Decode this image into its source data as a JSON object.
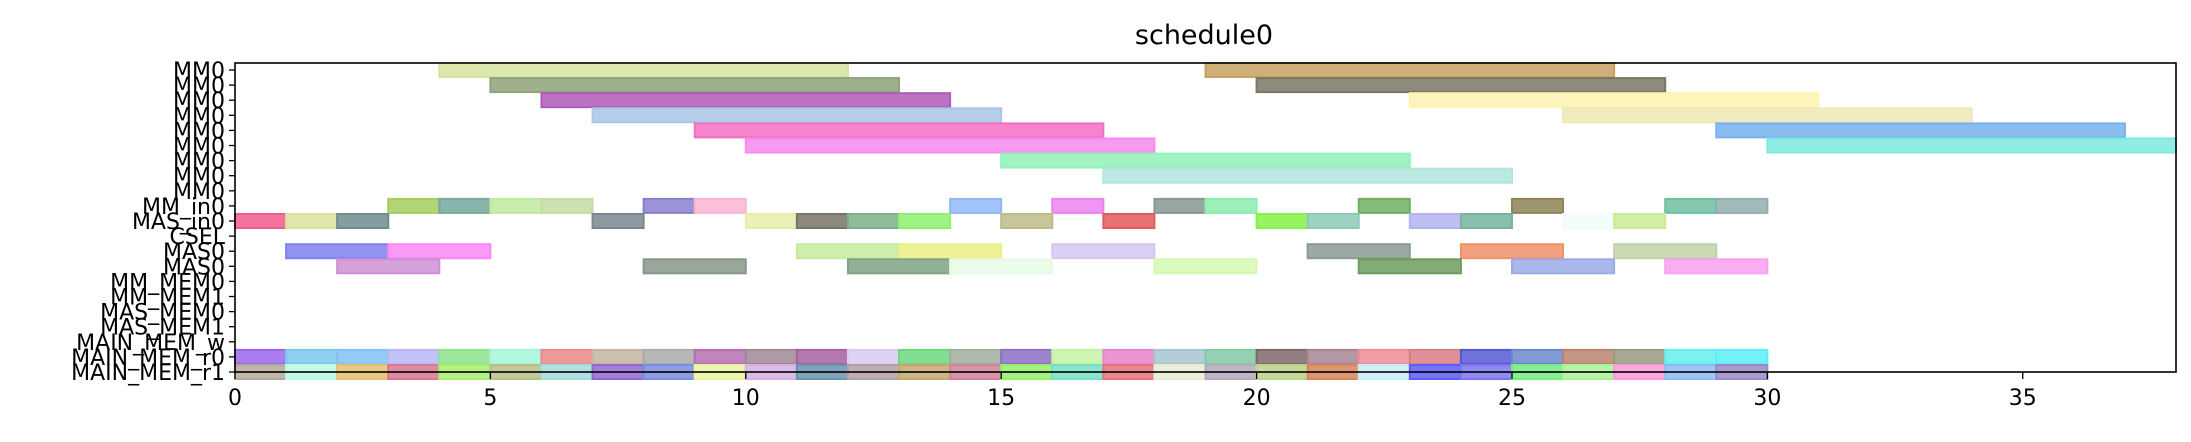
{
  "chart_data": {
    "type": "gantt",
    "title": "schedule0",
    "xlabel": "",
    "ylabel": "",
    "xlim": [
      0,
      38
    ],
    "x_ticks": [
      0,
      5,
      10,
      15,
      20,
      25,
      30,
      35
    ],
    "grid": false,
    "legend": "none",
    "rows": [
      "MM0",
      "MM0",
      "MM0",
      "MM0",
      "MM0",
      "MM0",
      "MM0",
      "MM0",
      "MM0",
      "MM_in0",
      "MAS_in0",
      "CSEL",
      "MAS0",
      "MAS0",
      "MM_MEM0",
      "MM_MEM1",
      "MAS_MEM0",
      "MAS_MEM1",
      "MAIN_MEM_w",
      "MAIN_MEM_r0",
      "MAIN_MEM_r1"
    ],
    "tasks": [
      {
        "row": 0,
        "start": 4,
        "end": 12,
        "color": "#d6e3a0"
      },
      {
        "row": 0,
        "start": 19,
        "end": 27,
        "color": "#c8a060"
      },
      {
        "row": 1,
        "start": 5,
        "end": 13,
        "color": "#8ea378"
      },
      {
        "row": 1,
        "start": 20,
        "end": 28,
        "color": "#7a7766"
      },
      {
        "row": 2,
        "start": 6,
        "end": 14,
        "color": "#b05ab8"
      },
      {
        "row": 2,
        "start": 23,
        "end": 31,
        "color": "#fcf4b0"
      },
      {
        "row": 3,
        "start": 7,
        "end": 15,
        "color": "#aac6e6"
      },
      {
        "row": 3,
        "start": 26,
        "end": 34,
        "color": "#f1e8b5"
      },
      {
        "row": 4,
        "start": 9,
        "end": 17,
        "color": "#f46ec2"
      },
      {
        "row": 4,
        "start": 29,
        "end": 37,
        "color": "#78b2ee"
      },
      {
        "row": 5,
        "start": 10,
        "end": 18,
        "color": "#f68af0"
      },
      {
        "row": 5,
        "start": 30,
        "end": 38,
        "color": "#7ce9e0"
      },
      {
        "row": 6,
        "start": 15,
        "end": 23,
        "color": "#90f2b6"
      },
      {
        "row": 7,
        "start": 17,
        "end": 25,
        "color": "#b0e6dc"
      },
      {
        "row": 9,
        "start": 3,
        "end": 4,
        "color": "#a6cd5c"
      },
      {
        "row": 9,
        "start": 4,
        "end": 5,
        "color": "#76a89e"
      },
      {
        "row": 9,
        "start": 5,
        "end": 6,
        "color": "#c0ea9e"
      },
      {
        "row": 9,
        "start": 6,
        "end": 7,
        "color": "#c6dca4"
      },
      {
        "row": 9,
        "start": 8,
        "end": 9,
        "color": "#8880cc"
      },
      {
        "row": 9,
        "start": 9,
        "end": 10,
        "color": "#fab4d4"
      },
      {
        "row": 9,
        "start": 14,
        "end": 15,
        "color": "#90b8f4"
      },
      {
        "row": 9,
        "start": 16,
        "end": 17,
        "color": "#ec82f0"
      },
      {
        "row": 9,
        "start": 18,
        "end": 19,
        "color": "#869892"
      },
      {
        "row": 9,
        "start": 19,
        "end": 20,
        "color": "#8cecae"
      },
      {
        "row": 9,
        "start": 22,
        "end": 23,
        "color": "#6eb060"
      },
      {
        "row": 9,
        "start": 25,
        "end": 26,
        "color": "#8e8458"
      },
      {
        "row": 9,
        "start": 28,
        "end": 29,
        "color": "#6ec0a0"
      },
      {
        "row": 9,
        "start": 29,
        "end": 30,
        "color": "#92aeae"
      },
      {
        "row": 10,
        "start": 0,
        "end": 1,
        "color": "#f05c8c"
      },
      {
        "row": 10,
        "start": 1,
        "end": 2,
        "color": "#dce2a0"
      },
      {
        "row": 10,
        "start": 2,
        "end": 3,
        "color": "#6e8c8e"
      },
      {
        "row": 10,
        "start": 7,
        "end": 8,
        "color": "#7a8890"
      },
      {
        "row": 10,
        "start": 10,
        "end": 11,
        "color": "#e8eeaa"
      },
      {
        "row": 10,
        "start": 11,
        "end": 12,
        "color": "#7a7466"
      },
      {
        "row": 10,
        "start": 12,
        "end": 13,
        "color": "#7cb088"
      },
      {
        "row": 10,
        "start": 13,
        "end": 14,
        "color": "#8ef070"
      },
      {
        "row": 10,
        "start": 15,
        "end": 16,
        "color": "#bcbc88"
      },
      {
        "row": 10,
        "start": 17,
        "end": 18,
        "color": "#e05a5e"
      },
      {
        "row": 10,
        "start": 20,
        "end": 21,
        "color": "#84f246"
      },
      {
        "row": 10,
        "start": 21,
        "end": 22,
        "color": "#8ccab8"
      },
      {
        "row": 10,
        "start": 23,
        "end": 24,
        "color": "#b4b4f0"
      },
      {
        "row": 10,
        "start": 24,
        "end": 25,
        "color": "#76b4a0"
      },
      {
        "row": 10,
        "start": 26,
        "end": 27,
        "color": "#f2fcfc"
      },
      {
        "row": 10,
        "start": 27,
        "end": 28,
        "color": "#c8ec94"
      },
      {
        "row": 12,
        "start": 1,
        "end": 3,
        "color": "#8080f0"
      },
      {
        "row": 12,
        "start": 3,
        "end": 5,
        "color": "#fa88f4"
      },
      {
        "row": 12,
        "start": 11,
        "end": 13,
        "color": "#c4ec9c"
      },
      {
        "row": 12,
        "start": 13,
        "end": 15,
        "color": "#ecf084"
      },
      {
        "row": 12,
        "start": 16,
        "end": 18,
        "color": "#d6c6f2"
      },
      {
        "row": 12,
        "start": 21,
        "end": 23,
        "color": "#8c9a96"
      },
      {
        "row": 12,
        "start": 24,
        "end": 26,
        "color": "#f2906c"
      },
      {
        "row": 12,
        "start": 27,
        "end": 29,
        "color": "#c2d2a8"
      },
      {
        "row": 13,
        "start": 2,
        "end": 4,
        "color": "#cc90d4"
      },
      {
        "row": 13,
        "start": 8,
        "end": 10,
        "color": "#869888"
      },
      {
        "row": 13,
        "start": 12,
        "end": 14,
        "color": "#7ea484"
      },
      {
        "row": 13,
        "start": 14,
        "end": 16,
        "color": "#e6fae6"
      },
      {
        "row": 13,
        "start": 18,
        "end": 20,
        "color": "#d6f8b4"
      },
      {
        "row": 13,
        "start": 22,
        "end": 24,
        "color": "#6c9c5e"
      },
      {
        "row": 13,
        "start": 25,
        "end": 27,
        "color": "#9eaae6"
      },
      {
        "row": 13,
        "start": 28,
        "end": 30,
        "color": "#f8a0f0"
      },
      {
        "row": 19,
        "start": 0,
        "end": 1,
        "color": "#9c66ec"
      },
      {
        "row": 19,
        "start": 1,
        "end": 2,
        "color": "#7ac8ec"
      },
      {
        "row": 19,
        "start": 2,
        "end": 3,
        "color": "#80c2f4"
      },
      {
        "row": 19,
        "start": 3,
        "end": 4,
        "color": "#b8b8f8"
      },
      {
        "row": 19,
        "start": 4,
        "end": 5,
        "color": "#8ee28e"
      },
      {
        "row": 19,
        "start": 5,
        "end": 6,
        "color": "#a4f6da"
      },
      {
        "row": 19,
        "start": 6,
        "end": 7,
        "color": "#ea8888"
      },
      {
        "row": 19,
        "start": 7,
        "end": 8,
        "color": "#c4b4a0"
      },
      {
        "row": 19,
        "start": 8,
        "end": 9,
        "color": "#aaaaaa"
      },
      {
        "row": 19,
        "start": 9,
        "end": 10,
        "color": "#b470b0"
      },
      {
        "row": 19,
        "start": 10,
        "end": 11,
        "color": "#a08898"
      },
      {
        "row": 19,
        "start": 11,
        "end": 12,
        "color": "#a662a0"
      },
      {
        "row": 19,
        "start": 12,
        "end": 13,
        "color": "#dacaf2"
      },
      {
        "row": 19,
        "start": 13,
        "end": 14,
        "color": "#6ed87e"
      },
      {
        "row": 19,
        "start": 14,
        "end": 15,
        "color": "#a0ae9e"
      },
      {
        "row": 19,
        "start": 15,
        "end": 16,
        "color": "#8c70c4"
      },
      {
        "row": 19,
        "start": 16,
        "end": 17,
        "color": "#c4f4a4"
      },
      {
        "row": 19,
        "start": 17,
        "end": 18,
        "color": "#e884cc"
      },
      {
        "row": 19,
        "start": 18,
        "end": 19,
        "color": "#a8c4d0"
      },
      {
        "row": 19,
        "start": 19,
        "end": 20,
        "color": "#84c8a4"
      },
      {
        "row": 19,
        "start": 20,
        "end": 21,
        "color": "#806868"
      },
      {
        "row": 19,
        "start": 21,
        "end": 22,
        "color": "#a88494"
      },
      {
        "row": 19,
        "start": 22,
        "end": 23,
        "color": "#f08c98"
      },
      {
        "row": 19,
        "start": 23,
        "end": 24,
        "color": "#d87e86"
      },
      {
        "row": 19,
        "start": 24,
        "end": 25,
        "color": "#5858d4"
      },
      {
        "row": 19,
        "start": 25,
        "end": 26,
        "color": "#6a88cc"
      },
      {
        "row": 19,
        "start": 26,
        "end": 27,
        "color": "#b88470"
      },
      {
        "row": 19,
        "start": 27,
        "end": 28,
        "color": "#9a9a80"
      },
      {
        "row": 19,
        "start": 28,
        "end": 29,
        "color": "#66eeee"
      },
      {
        "row": 19,
        "start": 29,
        "end": 30,
        "color": "#5ceef6"
      },
      {
        "row": 20,
        "start": 0,
        "end": 1,
        "color": "#b4aa9a"
      },
      {
        "row": 20,
        "start": 1,
        "end": 2,
        "color": "#b8fce6"
      },
      {
        "row": 20,
        "start": 2,
        "end": 3,
        "color": "#e4c070"
      },
      {
        "row": 20,
        "start": 3,
        "end": 4,
        "color": "#d87890"
      },
      {
        "row": 20,
        "start": 4,
        "end": 5,
        "color": "#aaf06e"
      },
      {
        "row": 20,
        "start": 5,
        "end": 6,
        "color": "#b8c088"
      },
      {
        "row": 20,
        "start": 6,
        "end": 7,
        "color": "#a4dcdc"
      },
      {
        "row": 20,
        "start": 7,
        "end": 8,
        "color": "#9468d4"
      },
      {
        "row": 20,
        "start": 8,
        "end": 9,
        "color": "#7c8ce0"
      },
      {
        "row": 20,
        "start": 9,
        "end": 10,
        "color": "#eaf4a0"
      },
      {
        "row": 20,
        "start": 10,
        "end": 11,
        "color": "#d4b0e2"
      },
      {
        "row": 20,
        "start": 11,
        "end": 12,
        "color": "#6894b0"
      },
      {
        "row": 20,
        "start": 12,
        "end": 13,
        "color": "#b4a0a4"
      },
      {
        "row": 20,
        "start": 13,
        "end": 14,
        "color": "#c4a870"
      },
      {
        "row": 20,
        "start": 14,
        "end": 15,
        "color": "#d0849a"
      },
      {
        "row": 20,
        "start": 15,
        "end": 16,
        "color": "#96f06a"
      },
      {
        "row": 20,
        "start": 16,
        "end": 17,
        "color": "#74e0c4"
      },
      {
        "row": 20,
        "start": 17,
        "end": 18,
        "color": "#e8727a"
      },
      {
        "row": 20,
        "start": 18,
        "end": 19,
        "color": "#e6ecd4"
      },
      {
        "row": 20,
        "start": 19,
        "end": 20,
        "color": "#b4aabc"
      },
      {
        "row": 20,
        "start": 20,
        "end": 21,
        "color": "#bad48a"
      },
      {
        "row": 20,
        "start": 21,
        "end": 22,
        "color": "#d6865a"
      },
      {
        "row": 20,
        "start": 22,
        "end": 23,
        "color": "#c8ecf8"
      },
      {
        "row": 20,
        "start": 23,
        "end": 24,
        "color": "#5c5cf6"
      },
      {
        "row": 20,
        "start": 24,
        "end": 25,
        "color": "#7c74f0"
      },
      {
        "row": 20,
        "start": 25,
        "end": 26,
        "color": "#74ec84"
      },
      {
        "row": 20,
        "start": 26,
        "end": 27,
        "color": "#aaf298"
      },
      {
        "row": 20,
        "start": 27,
        "end": 28,
        "color": "#fc9ad8"
      },
      {
        "row": 20,
        "start": 28,
        "end": 29,
        "color": "#8cbcf2"
      },
      {
        "row": 20,
        "start": 29,
        "end": 30,
        "color": "#9c8ac8"
      }
    ]
  }
}
